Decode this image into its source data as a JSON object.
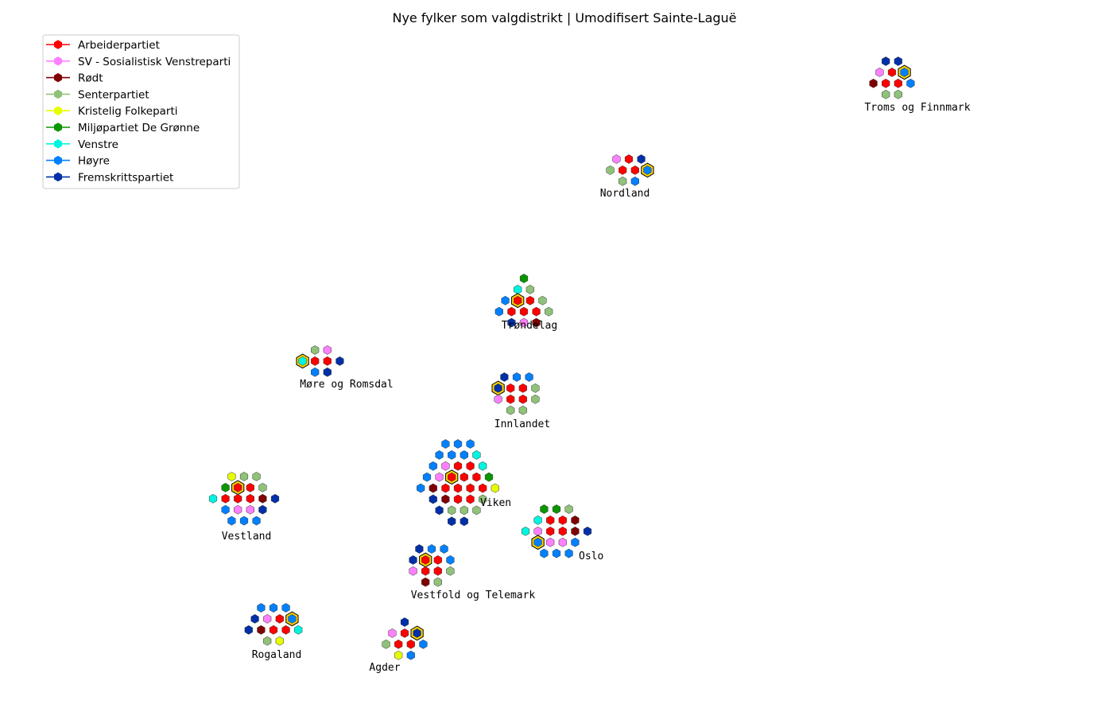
{
  "chart_data": {
    "type": "scatter",
    "title": "Nye fylker som valgdistrikt | Umodifisert Sainte-Laguë",
    "legend_position": "top-left",
    "grid": false,
    "parties": [
      {
        "code": "A",
        "name": "Arbeiderpartiet",
        "color": "#ff0000"
      },
      {
        "code": "SV",
        "name": "SV - Sosialistisk Venstreparti",
        "color": "#ff80ff"
      },
      {
        "code": "R",
        "name": "Rødt",
        "color": "#800000"
      },
      {
        "code": "SP",
        "name": "Senterpartiet",
        "color": "#90c27a"
      },
      {
        "code": "KRF",
        "name": "Kristelig Folkeparti",
        "color": "#e6ff00"
      },
      {
        "code": "MDG",
        "name": "Miljøpartiet De Grønne",
        "color": "#0a9600"
      },
      {
        "code": "V",
        "name": "Venstre",
        "color": "#00f5e0"
      },
      {
        "code": "H",
        "name": "Høyre",
        "color": "#0080ff"
      },
      {
        "code": "FRP",
        "name": "Fremskrittspartiet",
        "color": "#0030a8"
      }
    ],
    "districts": [
      {
        "name": "Troms og Finnmark",
        "leveling_seat": "H",
        "rows": [
          [
            "FRP",
            "FRP"
          ],
          [
            "SV",
            "A",
            "H"
          ],
          [
            "R",
            "A",
            "A",
            "H"
          ],
          [
            "SP",
            "SP"
          ]
        ]
      },
      {
        "name": "Nordland",
        "leveling_seat": "H",
        "rows": [
          [
            "SV",
            "A",
            "FRP"
          ],
          [
            "SP",
            "A",
            "A",
            "H"
          ],
          [
            "SP",
            "H"
          ]
        ]
      },
      {
        "name": "Trøndelag",
        "leveling_seat": "A",
        "rows": [
          [
            "MDG"
          ],
          [
            "V",
            "SP"
          ],
          [
            "H",
            "A",
            "A",
            "SP"
          ],
          [
            "H",
            "A",
            "A",
            "A",
            "SP"
          ],
          [
            "FRP",
            "SV",
            "R"
          ]
        ]
      },
      {
        "name": "Møre og Romsdal",
        "leveling_seat": "V",
        "rows": [
          [
            "SP",
            "SV"
          ],
          [
            "V",
            "A",
            "A",
            "FRP"
          ],
          [
            "H",
            "FRP"
          ]
        ]
      },
      {
        "name": "Innlandet",
        "leveling_seat": "FRP",
        "rows": [
          [
            "FRP",
            "H",
            "H"
          ],
          [
            "FRP",
            "A",
            "A",
            "SP"
          ],
          [
            "SV",
            "A",
            "A",
            "SP"
          ],
          [
            "SP",
            "SP"
          ]
        ]
      },
      {
        "name": "Viken",
        "leveling_seat": "A",
        "rows": [
          [
            "H",
            "H",
            "H"
          ],
          [
            "H",
            "H",
            "H",
            "V"
          ],
          [
            "H",
            "SV",
            "A",
            "A",
            "V"
          ],
          [
            "H",
            "SV",
            "A",
            "A",
            "A",
            "MDG"
          ],
          [
            "H",
            "R",
            "A",
            "A",
            "A",
            "A",
            "KRF"
          ],
          [
            "FRP",
            "R",
            "A",
            "A",
            "SP"
          ],
          [
            "FRP",
            "SP",
            "SP",
            "SP"
          ],
          [
            "FRP",
            "FRP"
          ]
        ]
      },
      {
        "name": "Vestland",
        "leveling_seat": "A",
        "rows": [
          [
            "KRF",
            "SP",
            "SP"
          ],
          [
            "MDG",
            "A",
            "A",
            "SP"
          ],
          [
            "V",
            "A",
            "A",
            "A",
            "R",
            "FRP"
          ],
          [
            "H",
            "SV",
            "SV",
            "FRP"
          ],
          [
            "H",
            "H",
            "H"
          ]
        ]
      },
      {
        "name": "Oslo",
        "leveling_seat": "H",
        "rows": [
          [
            "MDG",
            "MDG",
            "SP"
          ],
          [
            "V",
            "A",
            "A",
            "R"
          ],
          [
            "V",
            "SV",
            "A",
            "A",
            "R",
            "FRP"
          ],
          [
            "H",
            "SV",
            "SV",
            "H"
          ],
          [
            "H",
            "H",
            "H"
          ]
        ]
      },
      {
        "name": "Vestfold og Telemark",
        "leveling_seat": "A",
        "rows": [
          [
            "FRP",
            "H",
            "H"
          ],
          [
            "FRP",
            "A",
            "A",
            "H"
          ],
          [
            "SV",
            "A",
            "A",
            "SP"
          ],
          [
            "R",
            "SP"
          ]
        ]
      },
      {
        "name": "Rogaland",
        "leveling_seat": "H",
        "rows": [
          [
            "H",
            "H",
            "H"
          ],
          [
            "FRP",
            "SV",
            "A",
            "H"
          ],
          [
            "FRP",
            "R",
            "A",
            "A",
            "V"
          ],
          [
            "SP",
            "KRF"
          ]
        ]
      },
      {
        "name": "Agder",
        "leveling_seat": "FRP",
        "rows": [
          [
            "FRP"
          ],
          [
            "SV",
            "A",
            "FRP"
          ],
          [
            "SP",
            "A",
            "A",
            "H"
          ],
          [
            "KRF",
            "H"
          ]
        ]
      }
    ]
  }
}
